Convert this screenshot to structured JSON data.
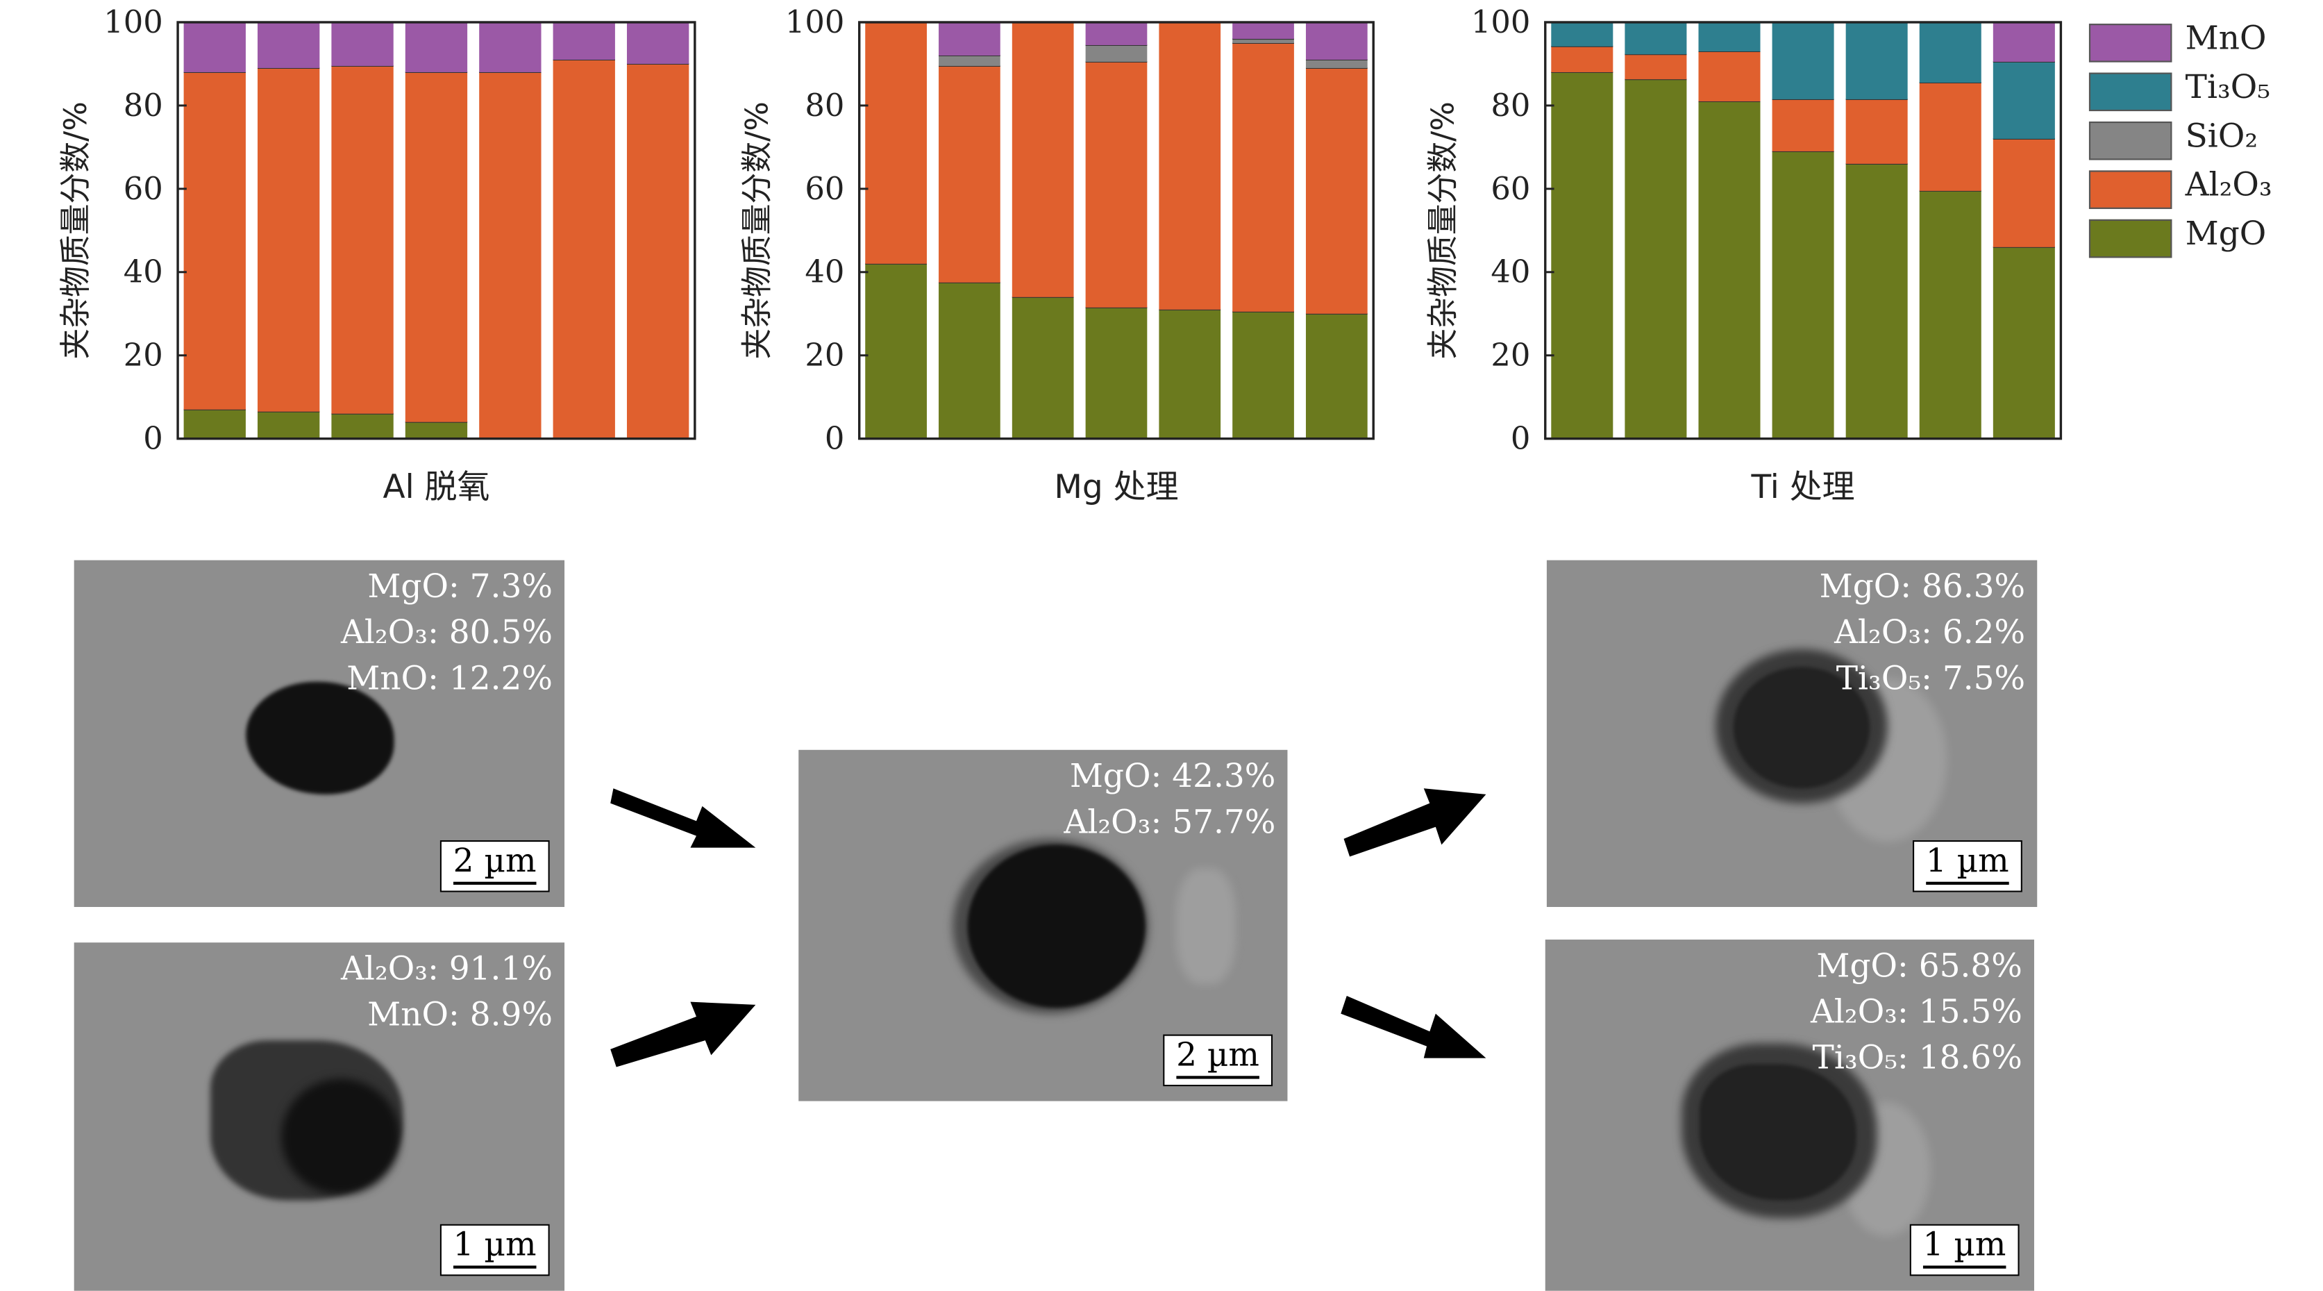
{
  "colors": {
    "MnO": "#9b59a6",
    "Ti3O5": "#2e7f8f",
    "SiO2": "#858585",
    "Al2O3": "#e0602e",
    "MgO": "#6b7a1e"
  },
  "legend": [
    {
      "key": "MnO",
      "label": "MnO"
    },
    {
      "key": "Ti3O5",
      "label": "Ti₃O₅"
    },
    {
      "key": "SiO2",
      "label": "SiO₂"
    },
    {
      "key": "Al2O3",
      "label": "Al₂O₃"
    },
    {
      "key": "MgO",
      "label": "MgO"
    }
  ],
  "chart_data": [
    {
      "type": "bar",
      "stacked": true,
      "title": "",
      "xlabel": "Al 脱氧",
      "ylabel": "夹杂物质量分数/%",
      "ylim": [
        0,
        100
      ],
      "yticks": [
        0,
        20,
        40,
        60,
        80,
        100
      ],
      "series": [
        {
          "key": "MgO",
          "values": [
            7,
            6.5,
            6,
            4,
            0,
            0,
            0
          ]
        },
        {
          "key": "Al2O3",
          "values": [
            81,
            82.5,
            83.5,
            84,
            88,
            91,
            90
          ]
        },
        {
          "key": "SiO2",
          "values": [
            0,
            0,
            0,
            0,
            0,
            0,
            0
          ]
        },
        {
          "key": "Ti3O5",
          "values": [
            0,
            0,
            0,
            0,
            0,
            0,
            0
          ]
        },
        {
          "key": "MnO",
          "values": [
            12,
            11,
            10.5,
            12,
            12,
            9,
            10
          ]
        }
      ]
    },
    {
      "type": "bar",
      "stacked": true,
      "title": "",
      "xlabel": "Mg 处理",
      "ylabel": "夹杂物质量分数/%",
      "ylim": [
        0,
        100
      ],
      "yticks": [
        0,
        20,
        40,
        60,
        80,
        100
      ],
      "series": [
        {
          "key": "MgO",
          "values": [
            42,
            37.5,
            34,
            31.5,
            31,
            30.5,
            30
          ]
        },
        {
          "key": "Al2O3",
          "values": [
            58,
            52,
            66,
            59,
            69,
            64.5,
            59
          ]
        },
        {
          "key": "SiO2",
          "values": [
            0,
            2.5,
            0,
            4,
            0,
            1,
            2
          ]
        },
        {
          "key": "Ti3O5",
          "values": [
            0,
            0,
            0,
            0,
            0,
            0,
            0
          ]
        },
        {
          "key": "MnO",
          "values": [
            0,
            8,
            0,
            5.5,
            0,
            4,
            9
          ]
        }
      ]
    },
    {
      "type": "bar",
      "stacked": true,
      "title": "",
      "xlabel": "Ti 处理",
      "ylabel": "夹杂物质量分数/%",
      "ylim": [
        0,
        100
      ],
      "yticks": [
        0,
        20,
        40,
        60,
        80,
        100
      ],
      "series": [
        {
          "key": "MgO",
          "values": [
            88,
            86.3,
            81,
            69,
            66,
            59.5,
            46
          ]
        },
        {
          "key": "Al2O3",
          "values": [
            6.2,
            6,
            12,
            12.5,
            15.5,
            26,
            26
          ]
        },
        {
          "key": "SiO2",
          "values": [
            0,
            0,
            0,
            0,
            0,
            0,
            0
          ]
        },
        {
          "key": "Ti3O5",
          "values": [
            5.8,
            7.7,
            7,
            18.5,
            18.5,
            14.5,
            18.5
          ]
        },
        {
          "key": "MnO",
          "values": [
            0,
            0,
            0,
            0,
            0,
            0,
            9.5
          ]
        }
      ]
    }
  ],
  "sem_images": [
    {
      "name": "al-deox-a",
      "lines": [
        "MgO: 7.3%",
        "Al₂O₃: 80.5%",
        "MnO: 12.2%"
      ],
      "scale": "2 µm"
    },
    {
      "name": "al-deox-b",
      "lines": [
        "Al₂O₃: 91.1%",
        "MnO: 8.9%"
      ],
      "scale": "1 µm"
    },
    {
      "name": "mg-treat",
      "lines": [
        "MgO: 42.3%",
        "Al₂O₃: 57.7%"
      ],
      "scale": "2 µm"
    },
    {
      "name": "ti-treat-a",
      "lines": [
        "MgO: 86.3%",
        "Al₂O₃: 6.2%",
        "Ti₃O₅: 7.5%"
      ],
      "scale": "1 µm"
    },
    {
      "name": "ti-treat-b",
      "lines": [
        "MgO: 65.8%",
        "Al₂O₃: 15.5%",
        "Ti₃O₅: 18.6%"
      ],
      "scale": "1 µm"
    }
  ]
}
